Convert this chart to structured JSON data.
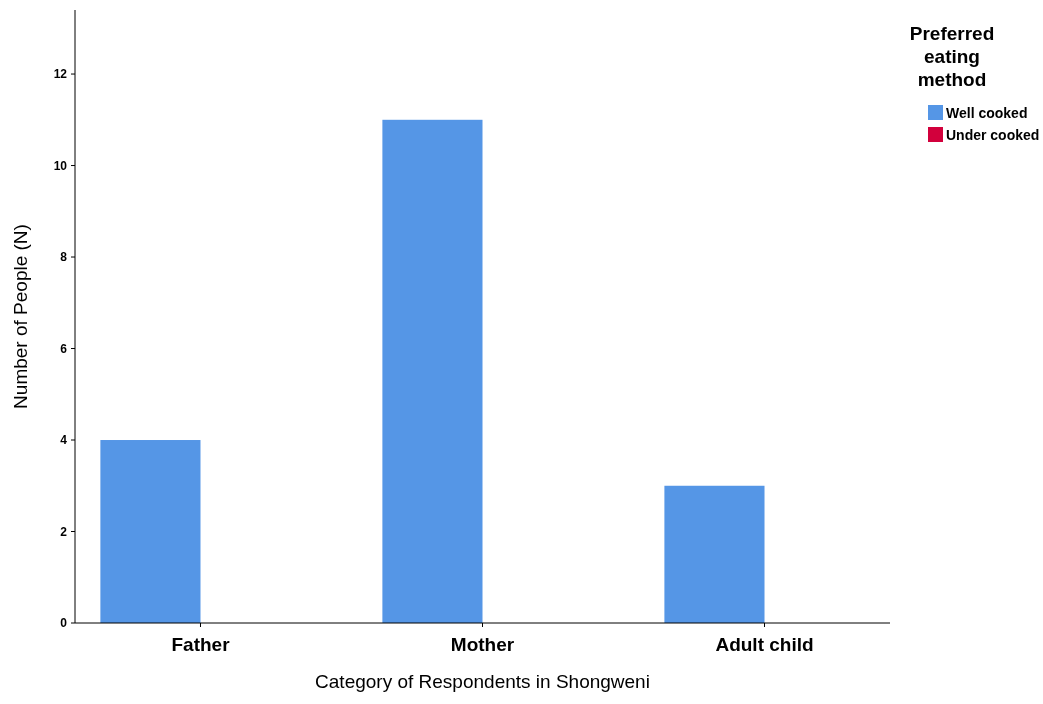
{
  "chart_data": {
    "type": "bar",
    "xlabel": "Category of Respondents in Shongweni",
    "ylabel": "Number of People (N)",
    "legend_title": "Preferred eating method",
    "legend": "top right",
    "grid": false,
    "categories": [
      "Father",
      "Mother",
      "Adult child"
    ],
    "series": [
      {
        "name": "Well cooked",
        "color": "#5596e6",
        "values": [
          4,
          11,
          3
        ]
      },
      {
        "name": "Under cooked",
        "color": "#d2003c",
        "values": [
          0,
          0,
          0
        ]
      }
    ],
    "ylim": [
      0,
      13.4
    ],
    "yticks": [
      0,
      2,
      4,
      6,
      8,
      10,
      12
    ]
  }
}
